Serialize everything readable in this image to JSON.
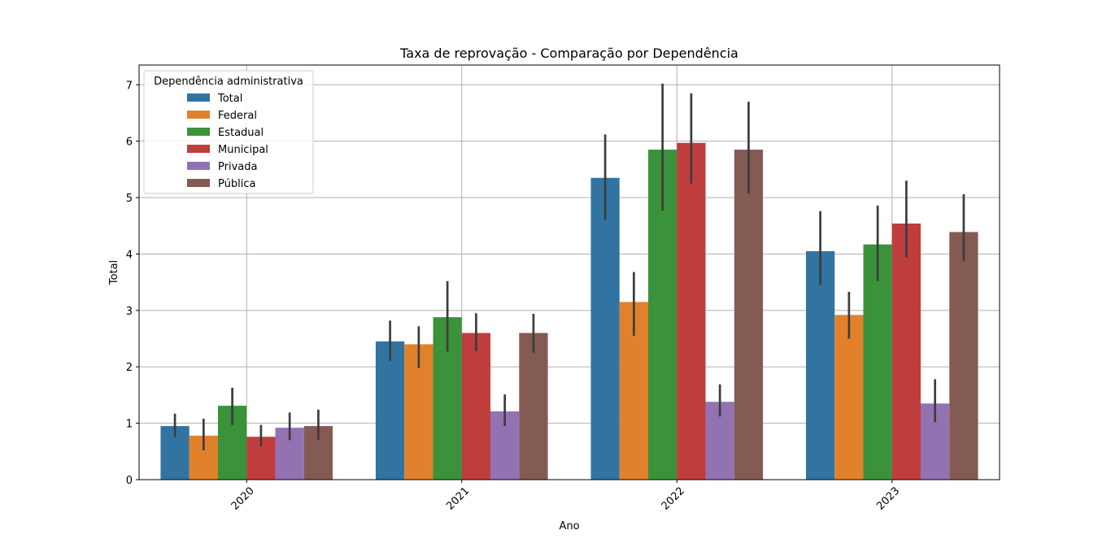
{
  "chart_data": {
    "type": "bar",
    "title": "Taxa de reprovação - Comparação por Dependência",
    "xlabel": "Ano",
    "ylabel": "Total",
    "categories": [
      "2020",
      "2021",
      "2022",
      "2023"
    ],
    "ylim": [
      0,
      7.35
    ],
    "yticks": [
      "0",
      "1",
      "2",
      "3",
      "4",
      "5",
      "6",
      "7"
    ],
    "grid": true,
    "legend": {
      "title": "Dependência administrativa",
      "placement": "top-left"
    },
    "series": [
      {
        "name": "Total",
        "color": "#3274a1",
        "values": [
          0.95,
          2.45,
          5.35,
          4.05
        ],
        "err_low": [
          0.75,
          2.1,
          4.6,
          3.45
        ],
        "err_high": [
          1.17,
          2.82,
          6.12,
          4.76
        ]
      },
      {
        "name": "Federal",
        "color": "#e1812c",
        "values": [
          0.78,
          2.4,
          3.15,
          2.92
        ],
        "err_low": [
          0.52,
          1.98,
          2.55,
          2.5
        ],
        "err_high": [
          1.08,
          2.72,
          3.68,
          3.33
        ]
      },
      {
        "name": "Estadual",
        "color": "#3a923a",
        "values": [
          1.31,
          2.88,
          5.85,
          4.17
        ],
        "err_low": [
          0.97,
          2.27,
          4.77,
          3.52
        ],
        "err_high": [
          1.63,
          3.52,
          7.02,
          4.86
        ]
      },
      {
        "name": "Municipal",
        "color": "#c03d3e",
        "values": [
          0.76,
          2.6,
          5.97,
          4.54
        ],
        "err_low": [
          0.59,
          2.28,
          5.25,
          3.94
        ],
        "err_high": [
          0.97,
          2.95,
          6.85,
          5.3
        ]
      },
      {
        "name": "Privada",
        "color": "#9372b2",
        "values": [
          0.92,
          1.21,
          1.38,
          1.35
        ],
        "err_low": [
          0.7,
          0.95,
          1.12,
          1.02
        ],
        "err_high": [
          1.19,
          1.51,
          1.69,
          1.78
        ]
      },
      {
        "name": "Pública",
        "color": "#845b53",
        "values": [
          0.95,
          2.6,
          5.85,
          4.39
        ],
        "err_low": [
          0.7,
          2.25,
          5.07,
          3.87
        ],
        "err_high": [
          1.24,
          2.94,
          6.7,
          5.06
        ]
      }
    ]
  }
}
